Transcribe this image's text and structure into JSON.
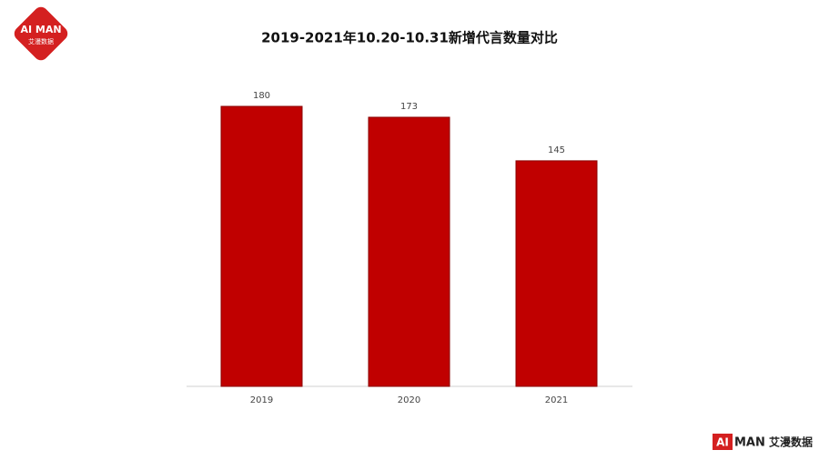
{
  "chart_data": {
    "type": "bar",
    "title": "2019-2021年10.20-10.31新增代言数量对比",
    "categories": [
      "2019",
      "2020",
      "2021"
    ],
    "values": [
      180,
      173,
      145
    ],
    "color": "#c00000"
  },
  "brand": {
    "logo": "AI MAN",
    "logo_sub": "艾漫数据",
    "footer_mark": "AI",
    "footer_name": "MAN",
    "footer_sub": "艾漫数据"
  }
}
